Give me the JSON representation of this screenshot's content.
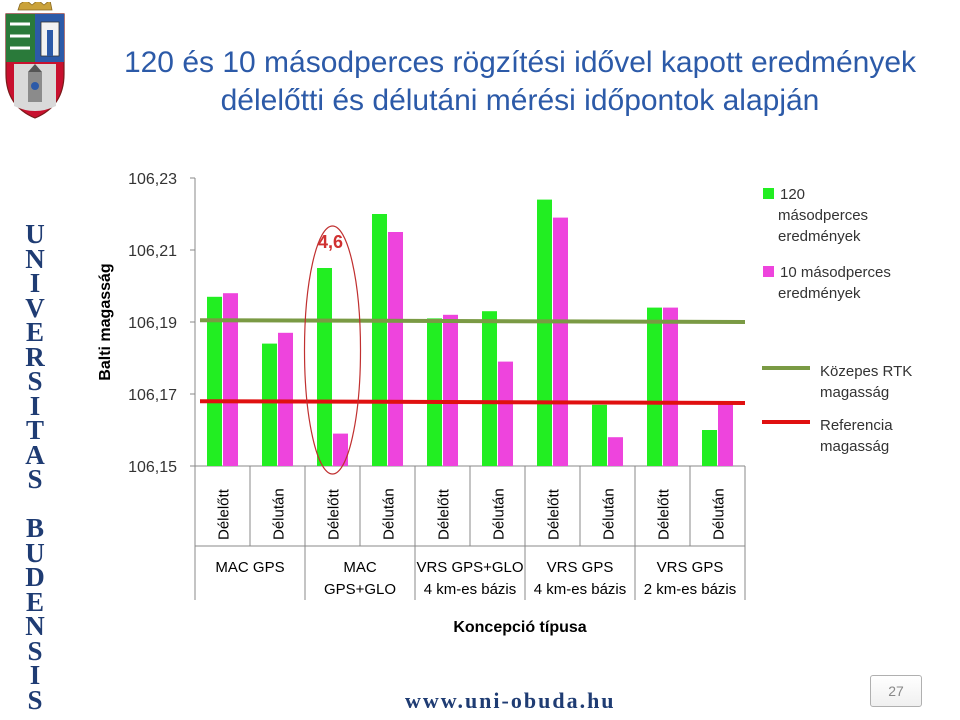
{
  "header": {
    "title_line1": "120 és 10 másodperces rögzítési idővel kapott eredmények",
    "title_line2": "délelőtti és délutáni mérési időpontok alapján"
  },
  "sidebar": {
    "letters": [
      "U",
      "N",
      "I",
      "V",
      "E",
      "R",
      "S",
      "I",
      "T",
      "A",
      "S",
      "",
      "B",
      "U",
      "D",
      "E",
      "N",
      "S",
      "I",
      "S"
    ]
  },
  "footer": {
    "url": "www.uni-obuda.hu",
    "page": "27"
  },
  "colors": {
    "series1": "#22ee22",
    "series2": "#ee44dd",
    "rtk": "#7a9a44",
    "reference": "#e01010",
    "highlight": "#c03030",
    "annotation": "#d03030"
  },
  "chart_data": {
    "type": "bar",
    "ylabel": "Balti magasság",
    "xlabel": "Koncepció típusa",
    "ylim": [
      106.15,
      106.23
    ],
    "yticks": [
      "106,15",
      "106,17",
      "106,19",
      "106,21",
      "106,23"
    ],
    "yticks_values": [
      106.15,
      106.17,
      106.19,
      106.21,
      106.23
    ],
    "categories": [
      "Délelőtt",
      "Délután",
      "Délelőtt",
      "Délután",
      "Délelőtt",
      "Délután",
      "Délelőtt",
      "Délután",
      "Délelőtt",
      "Délután"
    ],
    "groups": [
      {
        "label_lines": [
          "MAC GPS"
        ]
      },
      {
        "label_lines": [
          "MAC",
          "GPS+GLO"
        ]
      },
      {
        "label_lines": [
          "VRS GPS+GLO",
          "4 km-es bázis"
        ]
      },
      {
        "label_lines": [
          "VRS GPS",
          "4 km-es bázis"
        ]
      },
      {
        "label_lines": [
          "VRS GPS",
          "2 km-es bázis"
        ]
      }
    ],
    "series": [
      {
        "name_lines": [
          "120",
          "másodperces",
          "eredmények"
        ],
        "values": [
          106.197,
          106.184,
          106.205,
          106.22,
          106.191,
          106.193,
          106.224,
          106.167,
          106.194,
          106.16
        ]
      },
      {
        "name_lines": [
          "10 másodperces",
          "eredmények"
        ],
        "values": [
          106.198,
          106.187,
          106.159,
          106.215,
          106.192,
          106.179,
          106.219,
          106.158,
          106.194,
          106.168
        ]
      }
    ],
    "lines": [
      {
        "name_lines": [
          "Közepes RTK",
          "magasság"
        ],
        "start": 106.1905,
        "end": 106.19
      },
      {
        "name_lines": [
          "Referencia",
          "magasság"
        ],
        "start": 106.168,
        "end": 106.1675
      }
    ],
    "annotation": {
      "text": "4,6",
      "index": 2
    },
    "legend": "right"
  }
}
